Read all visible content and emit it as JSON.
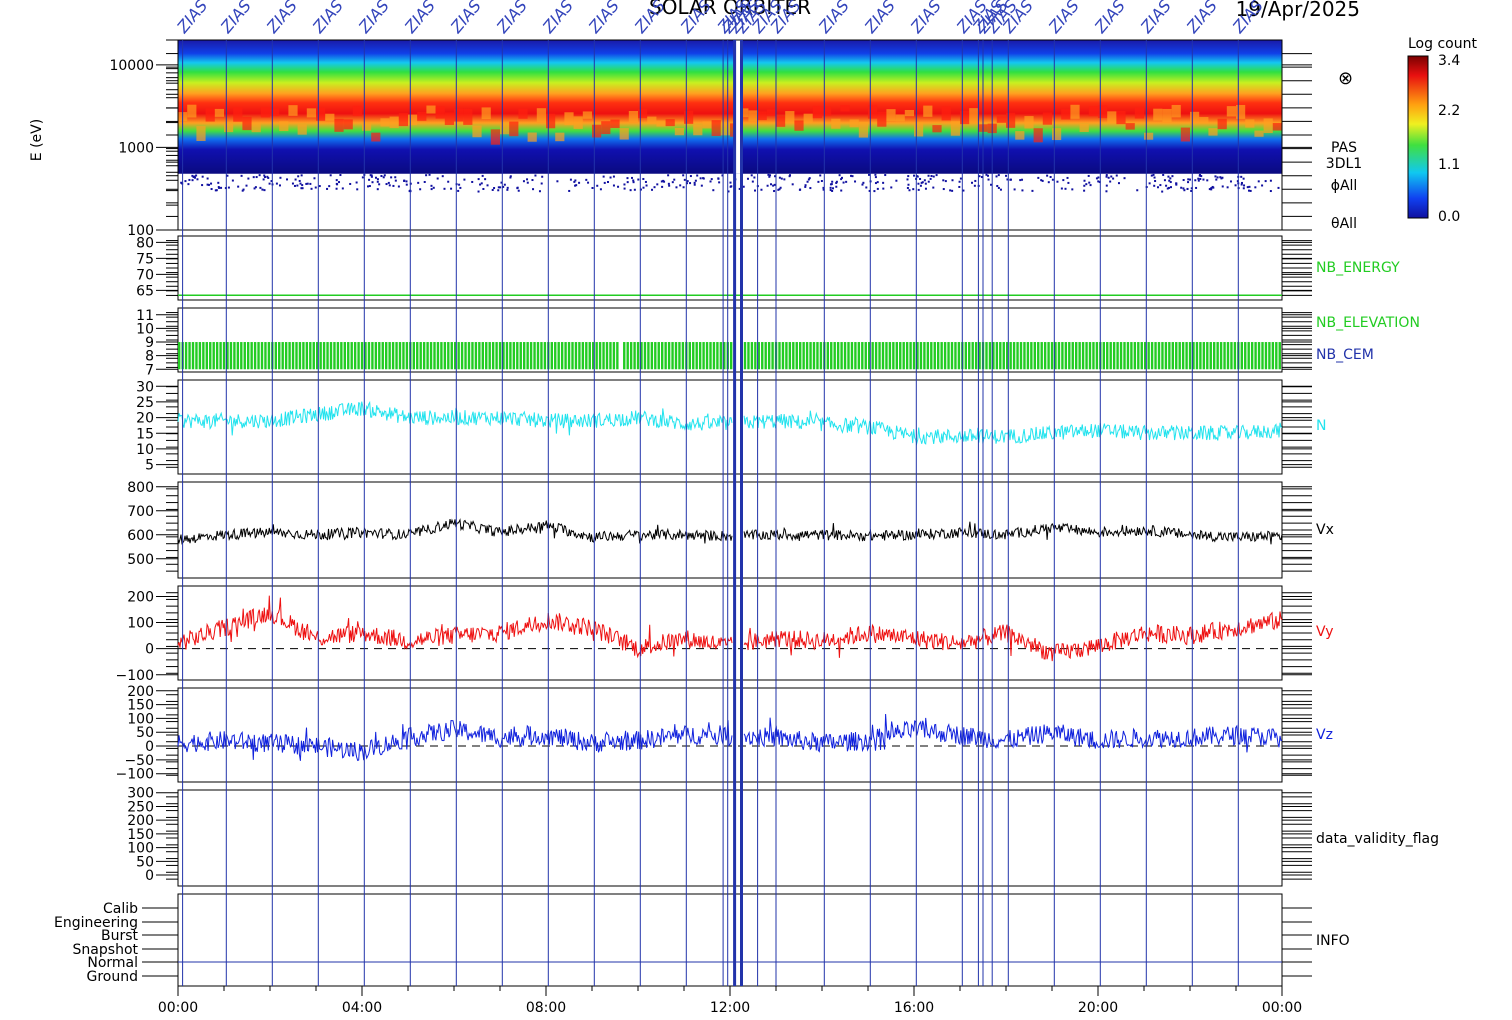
{
  "header": {
    "title": "SOLAR ORBITER",
    "date": "19/Apr/2025",
    "marker_label": "ZIAS"
  },
  "colorbar": {
    "title": "Log count",
    "ticks": [
      "3.4",
      "2.2",
      "1.1",
      "0.0"
    ]
  },
  "chart_data": [
    {
      "type": "heatmap",
      "name": "energy_spectrogram",
      "ylabel": "E (eV)",
      "yscale": "log",
      "ylim": [
        100,
        20000
      ],
      "yticks": [
        "10000",
        "1000",
        "100"
      ],
      "xlim_hours": [
        0,
        24
      ],
      "peak_energy_eV": 1800,
      "labels": [
        "PAS",
        "3DL1",
        "ϕAll",
        "θAll"
      ],
      "symbol": "⊗"
    },
    {
      "type": "line",
      "name": "NB_ENERGY",
      "color": "#22cc22",
      "ylim": [
        62,
        82
      ],
      "yticks": [
        "80",
        "75",
        "70",
        "65"
      ],
      "value": 63.5
    },
    {
      "type": "bar",
      "name": "NB_ELEVATION",
      "color": "#22cc22",
      "second_label": "NB_CEM",
      "second_color": "#2233aa",
      "ylim": [
        6.8,
        11.5
      ],
      "yticks": [
        "11",
        "10",
        "9",
        "8",
        "7"
      ],
      "band": [
        7,
        9
      ],
      "gaps_hours": [
        9.6,
        12.1,
        12.2
      ]
    },
    {
      "type": "line",
      "name": "N",
      "color": "#22e3ee",
      "ylim": [
        2,
        32
      ],
      "yticks": [
        "30",
        "25",
        "20",
        "15",
        "10",
        "5"
      ],
      "hours": [
        0,
        1,
        2,
        3,
        4,
        5,
        6,
        7,
        8,
        9,
        10,
        11,
        12,
        13,
        14,
        15,
        16,
        17,
        18,
        19,
        20,
        21,
        22,
        23,
        24
      ],
      "values": [
        19,
        19,
        19,
        21,
        23,
        20,
        20,
        20,
        19,
        19,
        20,
        18,
        18,
        19,
        18,
        17,
        14,
        14,
        14,
        15,
        16,
        15,
        15,
        15,
        16
      ]
    },
    {
      "type": "line",
      "name": "Vx",
      "color": "#000000",
      "ylim": [
        420,
        820
      ],
      "yticks": [
        "800",
        "700",
        "600",
        "500"
      ],
      "hours": [
        0,
        1,
        2,
        3,
        4,
        5,
        6,
        7,
        8,
        9,
        10,
        11,
        12,
        13,
        14,
        15,
        16,
        17,
        18,
        19,
        20,
        21,
        22,
        23,
        24
      ],
      "values": [
        580,
        600,
        610,
        600,
        610,
        600,
        650,
        610,
        640,
        590,
        600,
        600,
        595,
        600,
        600,
        595,
        600,
        610,
        600,
        630,
        610,
        620,
        600,
        590,
        595
      ]
    },
    {
      "type": "line",
      "name": "Vy",
      "color": "#ee1111",
      "ylim": [
        -120,
        240
      ],
      "yticks": [
        "200",
        "100",
        "0",
        "−100"
      ],
      "hours": [
        0,
        1,
        2,
        3,
        4,
        5,
        6,
        7,
        8,
        9,
        10,
        11,
        12,
        13,
        14,
        15,
        16,
        17,
        18,
        19,
        20,
        21,
        22,
        23,
        24
      ],
      "values": [
        20,
        80,
        140,
        40,
        60,
        30,
        50,
        60,
        110,
        80,
        0,
        40,
        10,
        40,
        30,
        60,
        40,
        20,
        60,
        -20,
        10,
        60,
        50,
        80,
        110
      ]
    },
    {
      "type": "line",
      "name": "Vz",
      "color": "#1122dd",
      "ylim": [
        -130,
        210
      ],
      "yticks": [
        "200",
        "150",
        "100",
        "50",
        "0",
        "−50",
        "−100"
      ],
      "hours": [
        0,
        1,
        2,
        3,
        4,
        5,
        6,
        7,
        8,
        9,
        10,
        11,
        12,
        13,
        14,
        15,
        16,
        17,
        18,
        19,
        20,
        21,
        22,
        23,
        24
      ],
      "values": [
        10,
        20,
        10,
        0,
        -20,
        30,
        60,
        30,
        40,
        10,
        20,
        40,
        40,
        30,
        10,
        20,
        60,
        40,
        20,
        50,
        20,
        30,
        30,
        40,
        30
      ]
    },
    {
      "type": "line",
      "name": "data_validity_flag",
      "color": "#000000",
      "ylim": [
        -40,
        310
      ],
      "yticks": [
        "300",
        "250",
        "200",
        "150",
        "100",
        "50",
        "0"
      ]
    },
    {
      "type": "table",
      "name": "INFO",
      "rows": [
        "Calib",
        "Engineering",
        "Burst",
        "Snapshot",
        "Normal",
        "Ground"
      ],
      "normal_active": true
    }
  ],
  "x_axis": {
    "ticks": [
      "00:00",
      "04:00",
      "08:00",
      "12:00",
      "16:00",
      "20:00",
      "00:00"
    ]
  },
  "marker_hours": [
    0.1,
    1.05,
    2.05,
    3.05,
    4.05,
    5.05,
    6.05,
    7.05,
    8.05,
    9.05,
    10.05,
    11.05,
    11.85,
    11.95,
    12.1,
    12.25,
    12.6,
    13.0,
    14.05,
    15.05,
    16.05,
    17.05,
    17.4,
    17.5,
    17.7,
    18.05,
    19.05,
    20.05,
    21.05,
    22.05,
    23.05
  ]
}
